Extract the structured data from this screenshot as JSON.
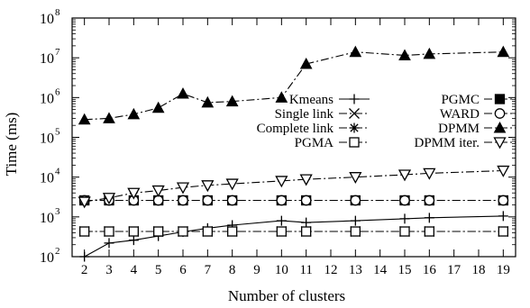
{
  "chart_data": {
    "type": "line",
    "title": "",
    "xlabel": "Number of clusters",
    "ylabel": "Time (ms)",
    "yscale": "log",
    "ylim": [
      100,
      100000000
    ],
    "y_ticks": [
      {
        "value": 100,
        "base": "10",
        "exp": "2"
      },
      {
        "value": 1000,
        "base": "10",
        "exp": "3"
      },
      {
        "value": 10000,
        "base": "10",
        "exp": "4"
      },
      {
        "value": 100000,
        "base": "10",
        "exp": "5"
      },
      {
        "value": 1000000,
        "base": "10",
        "exp": "6"
      },
      {
        "value": 10000000,
        "base": "10",
        "exp": "7"
      },
      {
        "value": 100000000,
        "base": "10",
        "exp": "8"
      }
    ],
    "x": [
      2,
      3,
      4,
      5,
      6,
      7,
      8,
      10,
      11,
      13,
      15,
      16,
      19
    ],
    "x_tick_labels": [
      "2",
      "3",
      "4",
      "5",
      "6",
      "7",
      "8",
      "9",
      "10",
      "11",
      "12",
      "13",
      "14",
      "15",
      "16",
      "17",
      "18",
      "19"
    ],
    "x_tick_values": [
      2,
      3,
      4,
      5,
      6,
      7,
      8,
      9,
      10,
      11,
      12,
      13,
      14,
      15,
      16,
      17,
      18,
      19
    ],
    "grid": false,
    "legend_position": "right, inside",
    "series": [
      {
        "name": "Kmeans",
        "marker": "plus",
        "dash": "solid",
        "values": [
          100,
          220,
          260,
          330,
          420,
          520,
          620,
          800,
          720,
          800,
          900,
          950,
          1050
        ]
      },
      {
        "name": "Single link",
        "marker": "x",
        "dash": "dashdot",
        "values": [
          430,
          430,
          430,
          430,
          430,
          430,
          430,
          430,
          430,
          430,
          430,
          430,
          430
        ]
      },
      {
        "name": "Complete link",
        "marker": "star",
        "dash": "dashdot",
        "values": [
          430,
          430,
          430,
          430,
          430,
          430,
          430,
          430,
          430,
          430,
          430,
          430,
          430
        ]
      },
      {
        "name": "PGMA",
        "marker": "square-open",
        "dash": "dashdot",
        "values": [
          430,
          430,
          430,
          430,
          430,
          430,
          430,
          430,
          430,
          430,
          430,
          430,
          430
        ]
      },
      {
        "name": "PGMC",
        "marker": "square-filled",
        "dash": "dashdot",
        "values": [
          2600,
          2600,
          2600,
          2600,
          2600,
          2600,
          2600,
          2600,
          2600,
          2600,
          2600,
          2600,
          2600
        ]
      },
      {
        "name": "WARD",
        "marker": "circle-open",
        "dash": "dashdot",
        "values": [
          2600,
          2600,
          2600,
          2600,
          2600,
          2600,
          2600,
          2600,
          2600,
          2600,
          2600,
          2600,
          2600
        ]
      },
      {
        "name": "DPMM",
        "marker": "triangle-filled",
        "dash": "dashdot",
        "values": [
          280000,
          300000,
          380000,
          550000,
          1250000,
          750000,
          800000,
          1000000,
          7000000,
          14000000,
          11500000,
          12500000,
          14000000
        ]
      },
      {
        "name": "DPMM iter.",
        "marker": "triangle-down-open",
        "dash": "dashdot",
        "values": [
          2400,
          3000,
          4000,
          4600,
          5500,
          6200,
          6800,
          8000,
          8800,
          10000,
          11500,
          12500,
          14500
        ]
      }
    ]
  }
}
